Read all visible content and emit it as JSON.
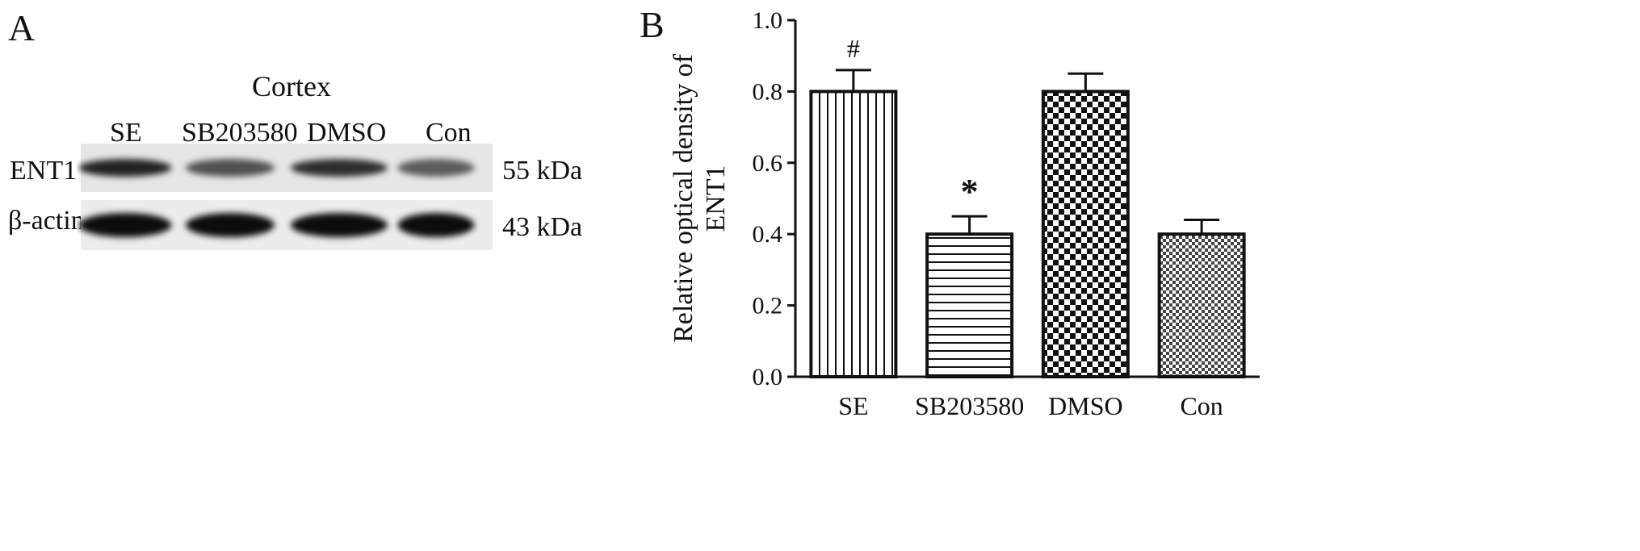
{
  "panel_a": {
    "label": "A",
    "title": "Cortex",
    "lanes": [
      "SE",
      "SB203580",
      "DMSO",
      "Con"
    ],
    "rows": [
      {
        "protein": "ENT1",
        "size": "55 kDa",
        "intensity": [
          0.85,
          0.65,
          0.8,
          0.6
        ]
      },
      {
        "protein": "β-actin",
        "size": "43 kDa",
        "intensity": [
          0.95,
          0.95,
          0.95,
          0.95
        ]
      }
    ]
  },
  "chart_data": {
    "panel_label": "B",
    "type": "bar",
    "categories": [
      "SE",
      "SB203580",
      "DMSO",
      "Con"
    ],
    "values": [
      0.8,
      0.4,
      0.8,
      0.4
    ],
    "errors": [
      0.06,
      0.05,
      0.05,
      0.04
    ],
    "patterns": [
      "vertical-lines",
      "horizontal-lines",
      "checker",
      "fine-checker"
    ],
    "annotations": [
      "#",
      "*",
      "",
      ""
    ],
    "ylabel_lines": [
      "Relative optical density of",
      "ENT1"
    ],
    "ylim": [
      0,
      1.0
    ],
    "yticks": [
      0.0,
      0.2,
      0.4,
      0.6,
      0.8,
      1.0
    ],
    "ytick_labels": [
      "0.0",
      "0.2",
      "0.4",
      "0.6",
      "0.8",
      "1.0"
    ]
  }
}
